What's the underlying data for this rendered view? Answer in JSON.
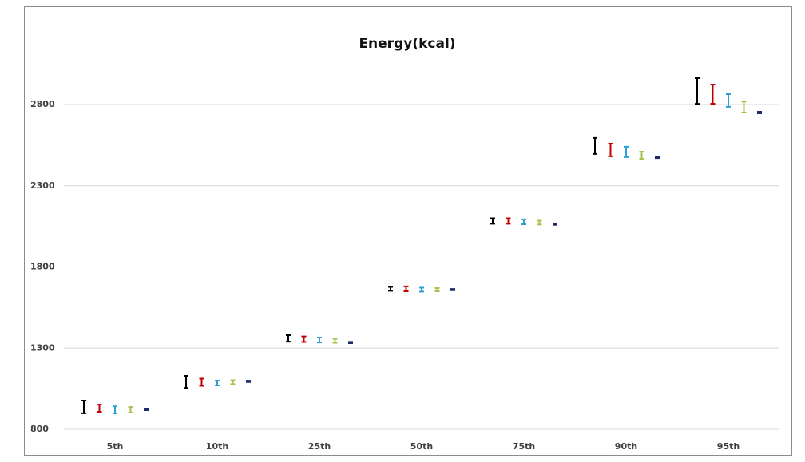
{
  "chart_data": {
    "type": "errorbar",
    "title": "Energy(kcal)",
    "categories": [
      "5th",
      "10th",
      "25th",
      "50th",
      "75th",
      "90th",
      "95th"
    ],
    "series": [
      {
        "color": "#000000",
        "values": [
          938,
          1092,
          1360,
          1665,
          2083,
          2545,
          2883
        ],
        "errors": [
          39,
          37,
          20,
          12,
          17,
          49,
          79
        ]
      },
      {
        "color": "#c00000",
        "values": [
          930,
          1090,
          1355,
          1665,
          2083,
          2520,
          2864
        ],
        "errors": [
          22,
          22,
          17,
          15,
          17,
          39,
          59
        ]
      },
      {
        "color": "#2e9fd8",
        "values": [
          920,
          1085,
          1350,
          1660,
          2078,
          2508,
          2825
        ],
        "errors": [
          22,
          15,
          15,
          12,
          15,
          32,
          39
        ]
      },
      {
        "color": "#a6c34c",
        "values": [
          920,
          1090,
          1345,
          1660,
          2073,
          2488,
          2785
        ],
        "errors": [
          17,
          12,
          12,
          10,
          12,
          22,
          34
        ]
      },
      {
        "color": "#1f2a6b",
        "values": [
          923,
          1095,
          1335,
          1660,
          2063,
          2475,
          2751
        ],
        "errors": [
          5,
          4,
          4,
          4,
          4,
          5,
          5
        ]
      }
    ],
    "ylim": [
      800,
      3100
    ],
    "yticks": [
      800,
      1300,
      1800,
      2300,
      2800
    ],
    "grid": true
  }
}
